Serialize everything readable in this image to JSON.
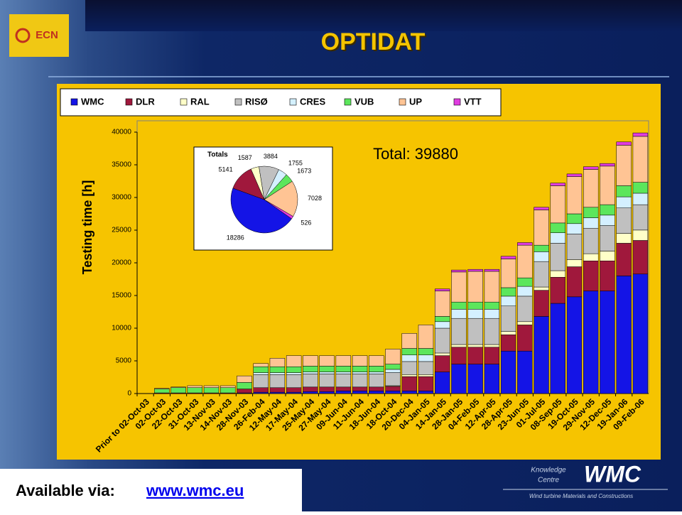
{
  "header": {
    "logo": "ECN",
    "title": "OPTIDAT"
  },
  "chart_data": [
    {
      "type": "stacked-bar",
      "y_label": "Testing time [h]",
      "annotation": "Total: 39880",
      "categories": [
        "Prior to 02-Oct-03",
        "02-Oct-03",
        "22-Oct-03",
        "31-Oct-03",
        "13-Nov-03",
        "14-Nov-03",
        "28-Nov-03",
        "26-Feb-04",
        "12-May-04",
        "17-May-04",
        "25-May-04",
        "27-May-04",
        "09-Jun-04",
        "11-Jun-04",
        "18-Jun-04",
        "18-Oct-04",
        "20-Dec-04",
        "04-Jan-05",
        "14-Jan-05",
        "28-Jan-05",
        "04-Feb-05",
        "12-Apr-05",
        "28-Apr-05",
        "23-Jun-05",
        "01-Jul-05",
        "08-Sep-05",
        "19-Oct-05",
        "29-Nov-05",
        "12-Dec-05",
        "19-Jan-06",
        "09-Feb-06"
      ],
      "series": [
        {
          "name": "WMC",
          "color": "#1414e6",
          "values": [
            0,
            0,
            0,
            0,
            0,
            0,
            100,
            200,
            200,
            200,
            300,
            300,
            400,
            400,
            400,
            400,
            400,
            400,
            3300,
            4500,
            4500,
            4500,
            6500,
            6500,
            11800,
            13800,
            14800,
            15700,
            15700,
            18000,
            18286
          ]
        },
        {
          "name": "DLR",
          "color": "#a0183c",
          "values": [
            0,
            100,
            100,
            100,
            100,
            100,
            600,
            700,
            700,
            700,
            700,
            700,
            600,
            600,
            600,
            700,
            2200,
            2200,
            2500,
            2600,
            2600,
            2600,
            2500,
            4000,
            4000,
            4000,
            4600,
            4600,
            4600,
            5000,
            5141
          ]
        },
        {
          "name": "RAL",
          "color": "#ffffc8",
          "values": [
            0,
            0,
            0,
            0,
            0,
            0,
            0,
            0,
            0,
            0,
            0,
            0,
            0,
            0,
            0,
            100,
            300,
            300,
            400,
            400,
            400,
            400,
            500,
            500,
            500,
            1000,
            1100,
            1100,
            1500,
            1500,
            1587
          ]
        },
        {
          "name": "RISØ",
          "color": "#c0c0c0",
          "values": [
            0,
            0,
            0,
            0,
            0,
            0,
            0,
            2000,
            2000,
            2000,
            2000,
            2000,
            2000,
            2000,
            2000,
            2000,
            2000,
            2000,
            3800,
            4000,
            4000,
            4000,
            3900,
            3900,
            3900,
            4200,
            3900,
            3900,
            3900,
            3900,
            3884
          ]
        },
        {
          "name": "CRES",
          "color": "#d4f0ff",
          "values": [
            0,
            0,
            0,
            0,
            0,
            0,
            0,
            300,
            300,
            300,
            300,
            300,
            300,
            300,
            300,
            500,
            1000,
            1000,
            1000,
            1400,
            1400,
            1400,
            1500,
            1500,
            1500,
            1600,
            1600,
            1600,
            1600,
            1700,
            1755
          ]
        },
        {
          "name": "VUB",
          "color": "#5ce65c",
          "values": [
            0,
            600,
            800,
            800,
            800,
            800,
            1000,
            900,
            900,
            900,
            900,
            900,
            900,
            900,
            900,
            800,
            1000,
            1000,
            800,
            1100,
            1100,
            1100,
            1300,
            1300,
            1000,
            1500,
            1500,
            1600,
            1600,
            1700,
            1673
          ]
        },
        {
          "name": "UP",
          "color": "#ffc494",
          "values": [
            0,
            100,
            100,
            300,
            300,
            300,
            1000,
            500,
            1300,
            1700,
            1600,
            1600,
            1600,
            1600,
            1600,
            2300,
            2300,
            3600,
            3900,
            4600,
            4700,
            4700,
            4400,
            5000,
            5400,
            5700,
            5700,
            5800,
            5900,
            6200,
            7028
          ]
        },
        {
          "name": "VTT",
          "color": "#e03ce0",
          "values": [
            0,
            0,
            0,
            0,
            0,
            0,
            0,
            0,
            0,
            0,
            0,
            0,
            0,
            0,
            0,
            0,
            0,
            0,
            300,
            300,
            300,
            300,
            400,
            400,
            400,
            400,
            400,
            400,
            400,
            500,
            526
          ]
        }
      ],
      "ylim": [
        0,
        40000
      ],
      "yticks": [
        0,
        5000,
        10000,
        15000,
        20000,
        25000,
        30000,
        35000,
        40000
      ],
      "legend": "top"
    },
    {
      "type": "pie",
      "title": "Totals",
      "categories": [
        "WMC",
        "DLR",
        "RAL",
        "RISØ",
        "CRES",
        "VUB",
        "UP",
        "VTT"
      ],
      "values": [
        18286,
        5141,
        1587,
        3884,
        1755,
        1673,
        7028,
        526
      ],
      "colors": [
        "#1414e6",
        "#a0183c",
        "#ffffc8",
        "#c0c0c0",
        "#d4f0ff",
        "#5ce65c",
        "#ffc494",
        "#e03ce0"
      ]
    }
  ],
  "footer": {
    "available": "Available via:",
    "link": "www.wmc.eu",
    "knowledge": "Knowledge",
    "centre": "Centre",
    "brand": "WMC",
    "tagline": "Wind turbine Materials and Constructions"
  }
}
